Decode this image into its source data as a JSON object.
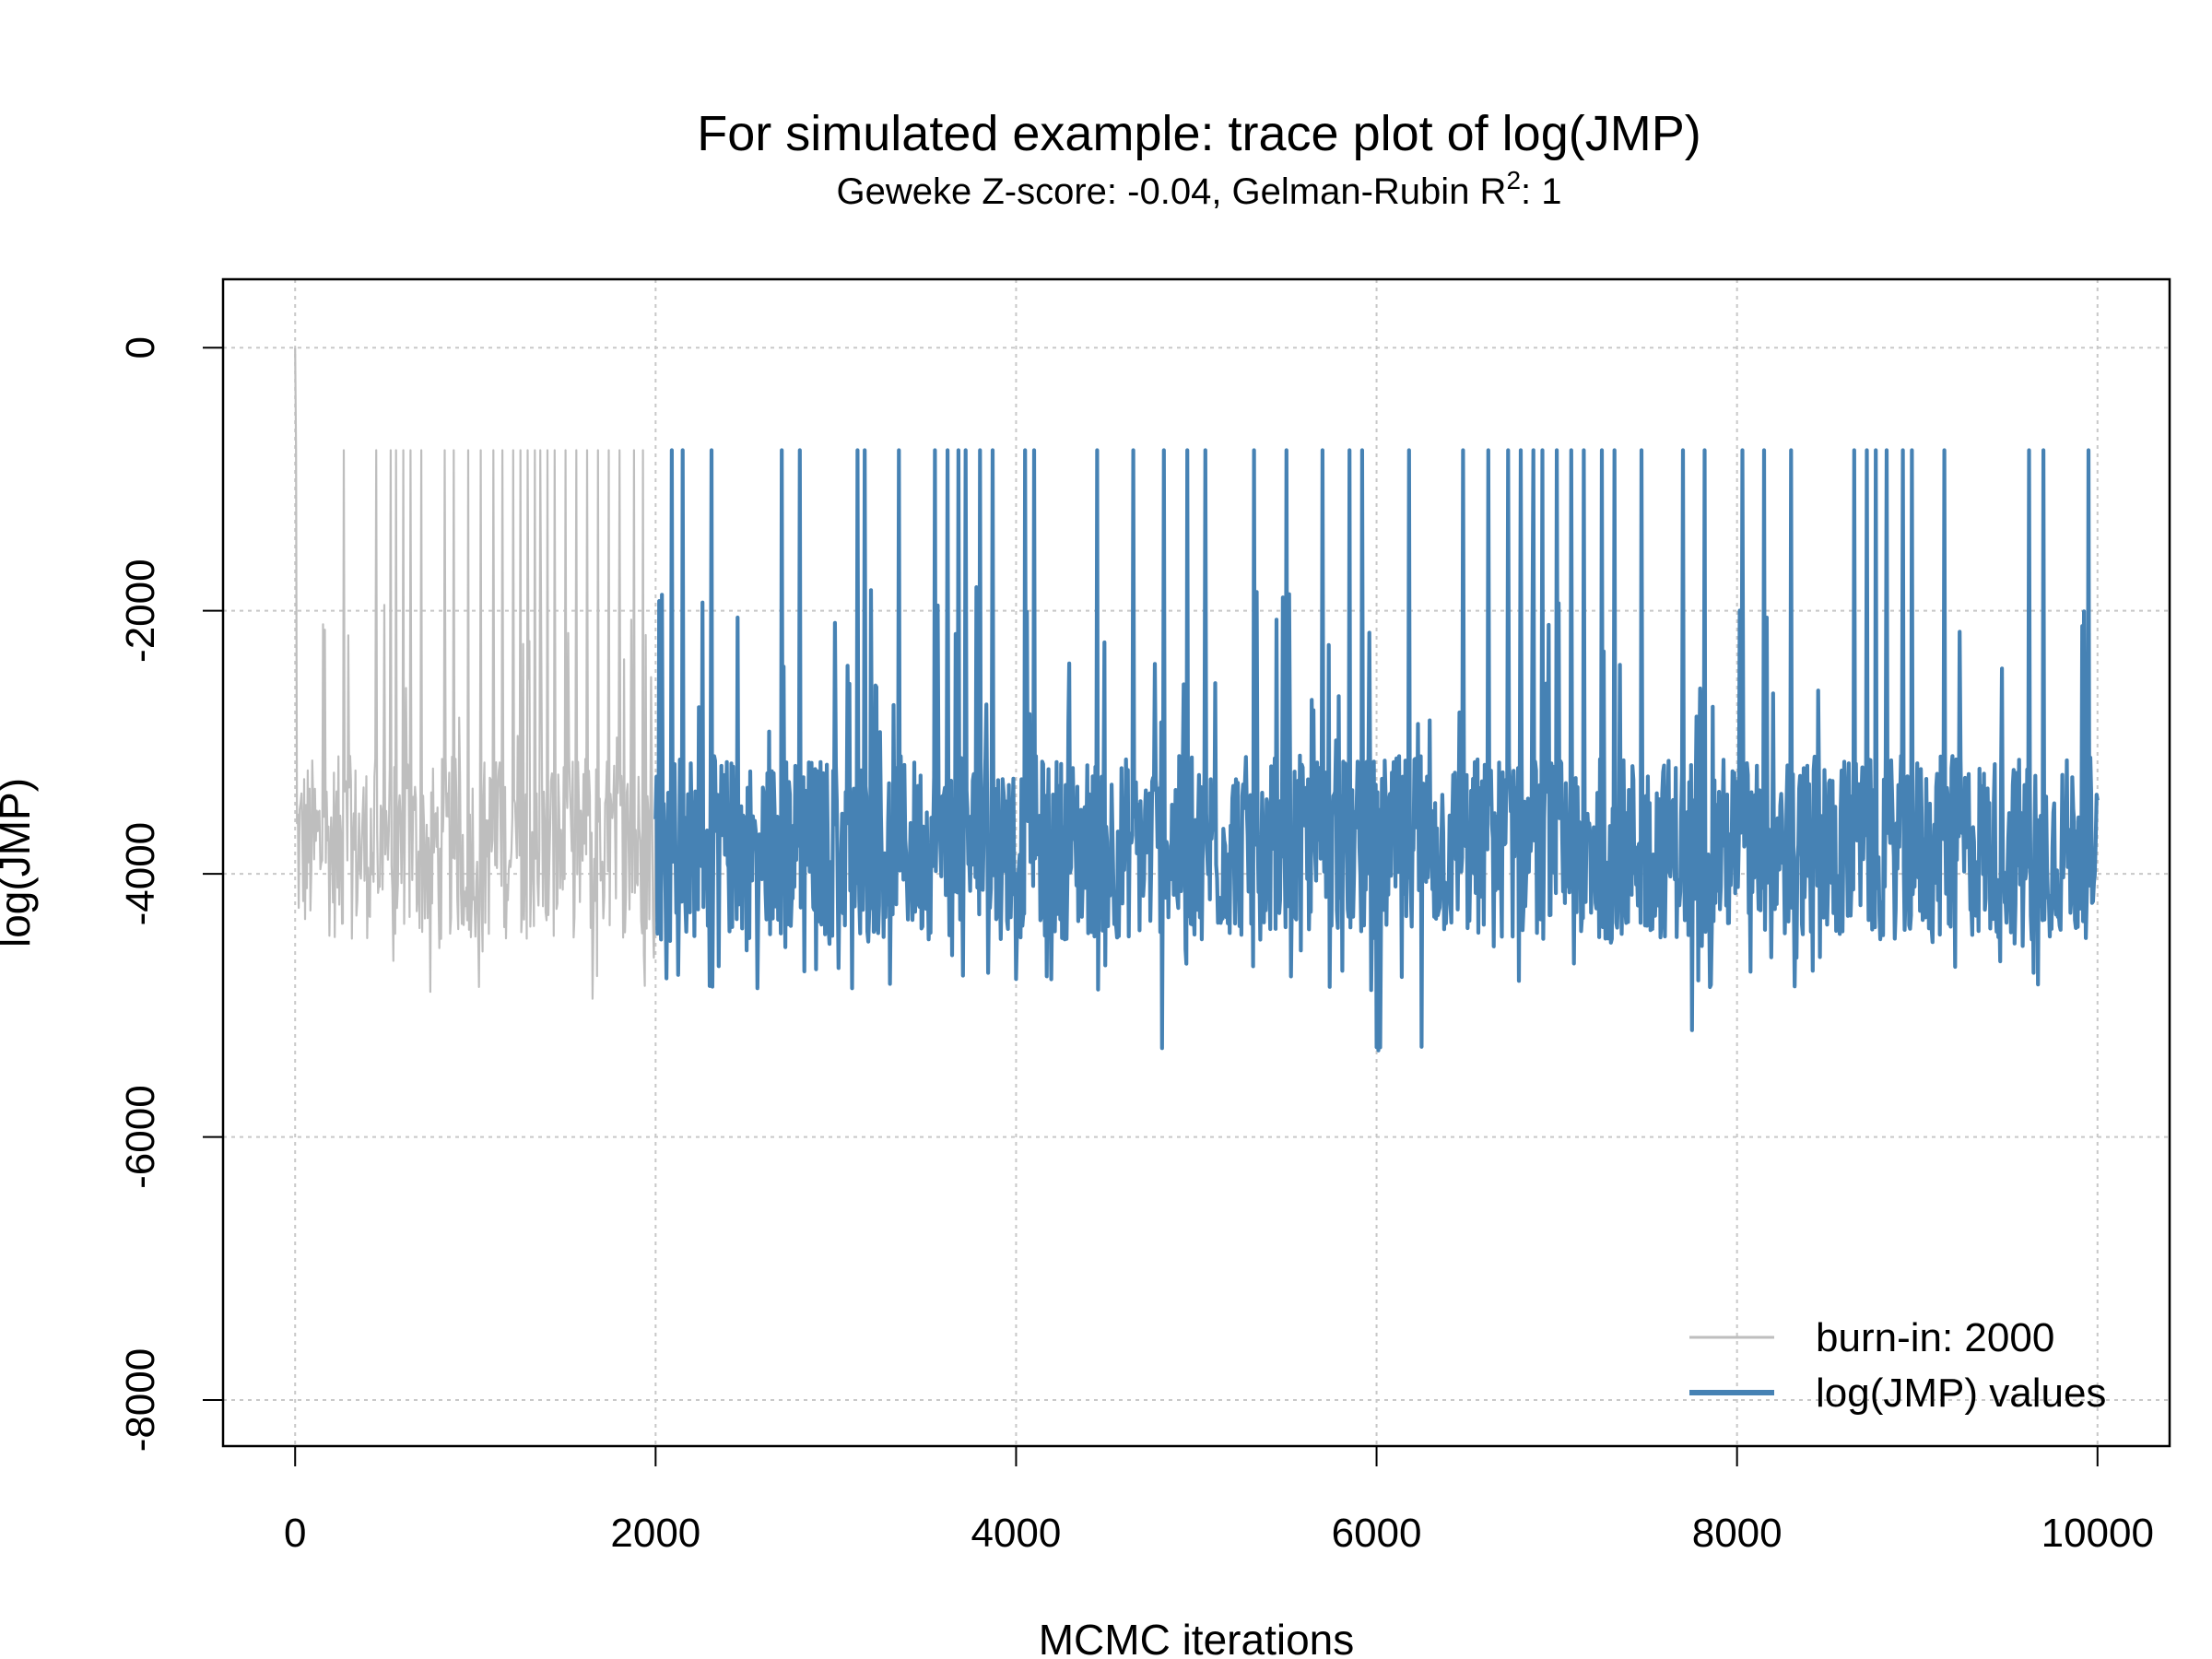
{
  "chart_data": {
    "type": "line",
    "title": "For simulated example: trace plot of log(JMP)",
    "subtitle": {
      "prefix": "Geweke Z-score: -0.04,  Gelman-Rubin R",
      "superscript": "2",
      "suffix": ": 1"
    },
    "xlabel": "MCMC iterations",
    "ylabel": "log(JMP)",
    "xlim": [
      -400,
      10400
    ],
    "ylim": [
      -8350,
      520
    ],
    "x_ticks": [
      0,
      2000,
      4000,
      6000,
      8000,
      10000
    ],
    "y_ticks": [
      0,
      -2000,
      -4000,
      -6000,
      -8000
    ],
    "x_tick_labels": [
      "0",
      "2000",
      "4000",
      "6000",
      "8000",
      "10000"
    ],
    "y_tick_labels": [
      "0",
      "-2000",
      "-4000",
      "-6000",
      "-8000"
    ],
    "grid": true,
    "legend_position": "bottom-right",
    "burn_in_end": 2000,
    "series": [
      {
        "name": "burn-in: 2000",
        "color": "#bebebe",
        "x_range": [
          0,
          2000
        ],
        "typical_range": [
          -4500,
          -3100
        ],
        "peak": -780,
        "trough": -5100,
        "start_value": 0,
        "spike_iterations": [
          5,
          270,
          450,
          530,
          560,
          600,
          640,
          700,
          830,
          880,
          960,
          1030,
          1100,
          1150,
          1210,
          1250,
          1290,
          1330,
          1360,
          1400,
          1440,
          1500,
          1560,
          1620,
          1680,
          1740,
          1800,
          1880,
          1930
        ],
        "dip_iterations": [
          600,
          1150,
          1290,
          1650
        ]
      },
      {
        "name": "log(JMP) values",
        "color": "#4682b4",
        "x_range": [
          2000,
          10000
        ],
        "typical_range": [
          -4500,
          -3100
        ],
        "peak": -780,
        "trough": -5400,
        "spike_iterations": [
          2090,
          2150,
          2310,
          2700,
          2800,
          3120,
          3160,
          3350,
          3550,
          3620,
          3680,
          3720,
          3800,
          3870,
          4050,
          4100,
          4450,
          4650,
          4820,
          4950,
          5050,
          5320,
          5500,
          5700,
          5850,
          5920,
          6180,
          6480,
          6620,
          6730,
          6800,
          6870,
          6920,
          7000,
          7080,
          7150,
          7250,
          7320,
          7470,
          7700,
          7820,
          8030,
          8150,
          8300,
          8650,
          8720,
          8770,
          8830,
          8920,
          8970,
          9150,
          9620,
          9700,
          9950
        ],
        "dip_iterations": [
          4810,
          6000,
          6010,
          6020,
          6250,
          7750
        ]
      }
    ],
    "legend": {
      "entries": [
        "burn-in: 2000",
        "log(JMP) values"
      ]
    }
  }
}
